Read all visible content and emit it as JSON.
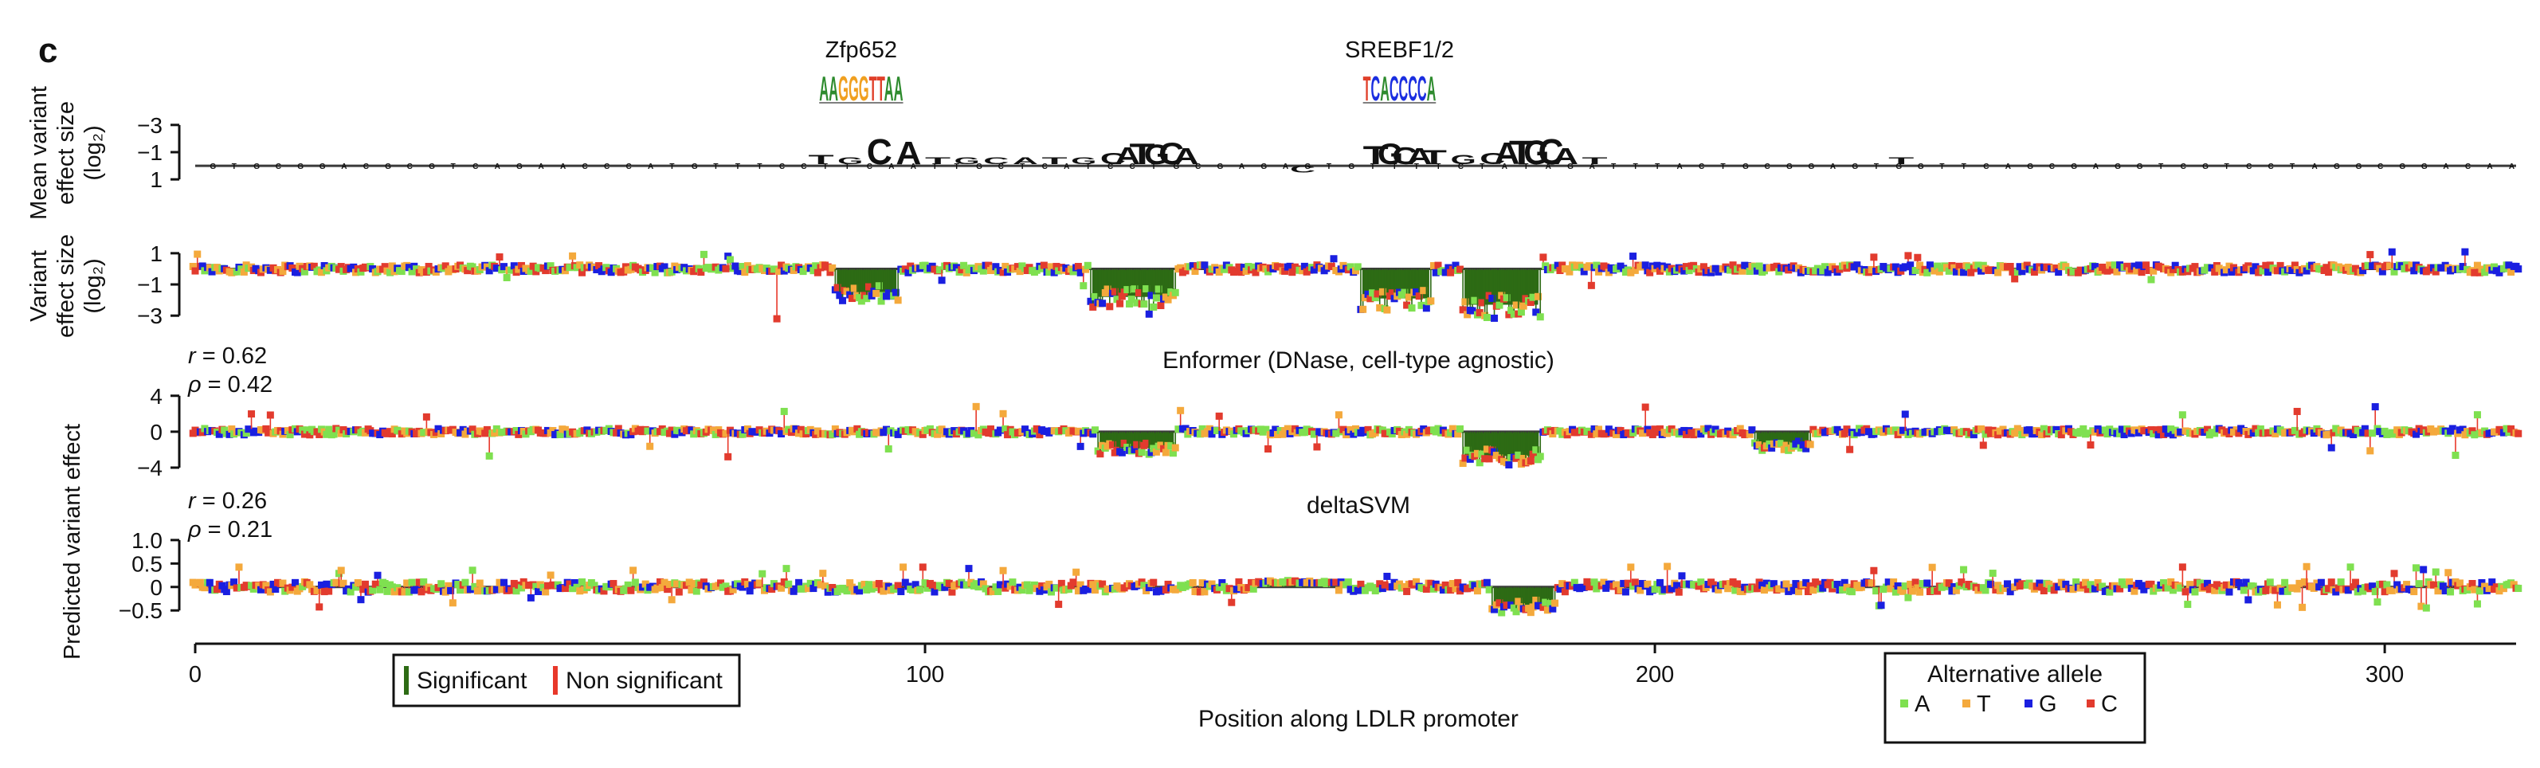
{
  "panel_letter": "c",
  "colors": {
    "A": "#7fe050",
    "T": "#f4a93c",
    "G": "#1a1fe0",
    "C": "#e23b2e",
    "significant": "#2d6b14",
    "non_significant": "#e8382a",
    "axis": "#111111",
    "logo_A": "#2e8b2e",
    "logo_T": "#e0402a",
    "logo_G": "#f0a020",
    "logo_C": "#1a2ee0"
  },
  "xaxis": {
    "label": "Position along LDLR promoter",
    "ticks": [
      0,
      100,
      200,
      300
    ],
    "range": [
      0,
      318
    ]
  },
  "legend_significance": {
    "items": [
      {
        "key": "sig",
        "label": "Significant"
      },
      {
        "key": "nonsig",
        "label": "Non significant"
      }
    ]
  },
  "legend_allele": {
    "title": "Alternative allele",
    "items": [
      {
        "key": "A",
        "label": "A"
      },
      {
        "key": "T",
        "label": "T"
      },
      {
        "key": "G",
        "label": "G"
      },
      {
        "key": "C",
        "label": "C"
      }
    ]
  },
  "motifs": [
    {
      "name": "Zfp652",
      "sequence": "AAGGGTTAA",
      "start": 85.5,
      "end": 97
    },
    {
      "name": "SREBF1/2",
      "sequence": "TCACCCCA",
      "start": 160,
      "end": 170
    }
  ],
  "chart_data": [
    {
      "type": "area",
      "id": "logo",
      "ylabel_lines": [
        "Mean variant",
        "effect size",
        "(log₂)"
      ],
      "yticks": [
        -3,
        -1,
        1
      ],
      "ylim": [
        1.4,
        -3.4
      ],
      "x": [
        80,
        84,
        88,
        92,
        96,
        100,
        104,
        108,
        112,
        116,
        120,
        124,
        126,
        128,
        130,
        132,
        134,
        140,
        146,
        150,
        156,
        160,
        162,
        164,
        166,
        168,
        172,
        176,
        178,
        180,
        182,
        184,
        186,
        190,
        200,
        210,
        220,
        232,
        240
      ],
      "y": [
        -0.1,
        -0.8,
        -0.5,
        -2.2,
        -2.0,
        -0.6,
        -0.5,
        -0.5,
        -0.4,
        -0.6,
        -0.5,
        -1.0,
        -1.5,
        -1.8,
        -1.7,
        -1.9,
        -1.4,
        -0.3,
        -0.2,
        0.5,
        -0.3,
        -1.6,
        -1.8,
        -1.5,
        -1.4,
        -1.2,
        -0.8,
        -1.0,
        -1.9,
        -2.1,
        -2.1,
        -2.2,
        -1.4,
        -0.4,
        -0.2,
        -0.2,
        -0.3,
        -0.4,
        -0.1
      ]
    },
    {
      "type": "bar",
      "id": "measured",
      "ylabel_lines": [
        "Variant",
        "effect size",
        "(log₂)"
      ],
      "yticks": [
        1,
        -1,
        -3
      ],
      "ylim": [
        1.3,
        -3.5
      ],
      "significant_regions": [
        {
          "start": 88,
          "end": 96,
          "value": -1.5
        },
        {
          "start": 123,
          "end": 134,
          "value": -1.8
        },
        {
          "start": 160,
          "end": 169,
          "value": -1.9
        },
        {
          "start": 174,
          "end": 184,
          "value": -2.3
        }
      ],
      "extremes": [
        {
          "x": 80,
          "value": -3.2
        },
        {
          "x": 131,
          "value": -2.9
        },
        {
          "x": 177,
          "value": -3.0
        },
        {
          "x": 181,
          "value": -2.9
        }
      ]
    },
    {
      "type": "bar",
      "id": "enformer",
      "title": "Enformer (DNase, cell-type agnostic)",
      "ylabel": "Predicted variant effect",
      "stats": [
        {
          "symbol": "r",
          "value": "= 0.62"
        },
        {
          "symbol": "ρ",
          "value": "= 0.42"
        }
      ],
      "yticks": [
        4,
        0,
        -4
      ],
      "ylim": [
        4.6,
        -4.8
      ],
      "significant_regions": [
        {
          "start": 124,
          "end": 134,
          "value": -1.8
        },
        {
          "start": 174,
          "end": 184,
          "value": -2.7
        },
        {
          "start": 214,
          "end": 221,
          "value": -1.5
        }
      ]
    },
    {
      "type": "bar",
      "id": "deltasvm",
      "title": "deltaSVM",
      "ylabel": "Predicted variant effect",
      "stats": [
        {
          "symbol": "r",
          "value": "= 0.26"
        },
        {
          "symbol": "ρ",
          "value": "= 0.21"
        }
      ],
      "yticks": [
        1.0,
        0.5,
        0,
        -0.5
      ],
      "ylim": [
        1.1,
        -0.7
      ],
      "significant_regions": [
        {
          "start": 146,
          "end": 156,
          "value": 0.1
        },
        {
          "start": 178,
          "end": 186,
          "value": -0.4
        }
      ]
    }
  ]
}
